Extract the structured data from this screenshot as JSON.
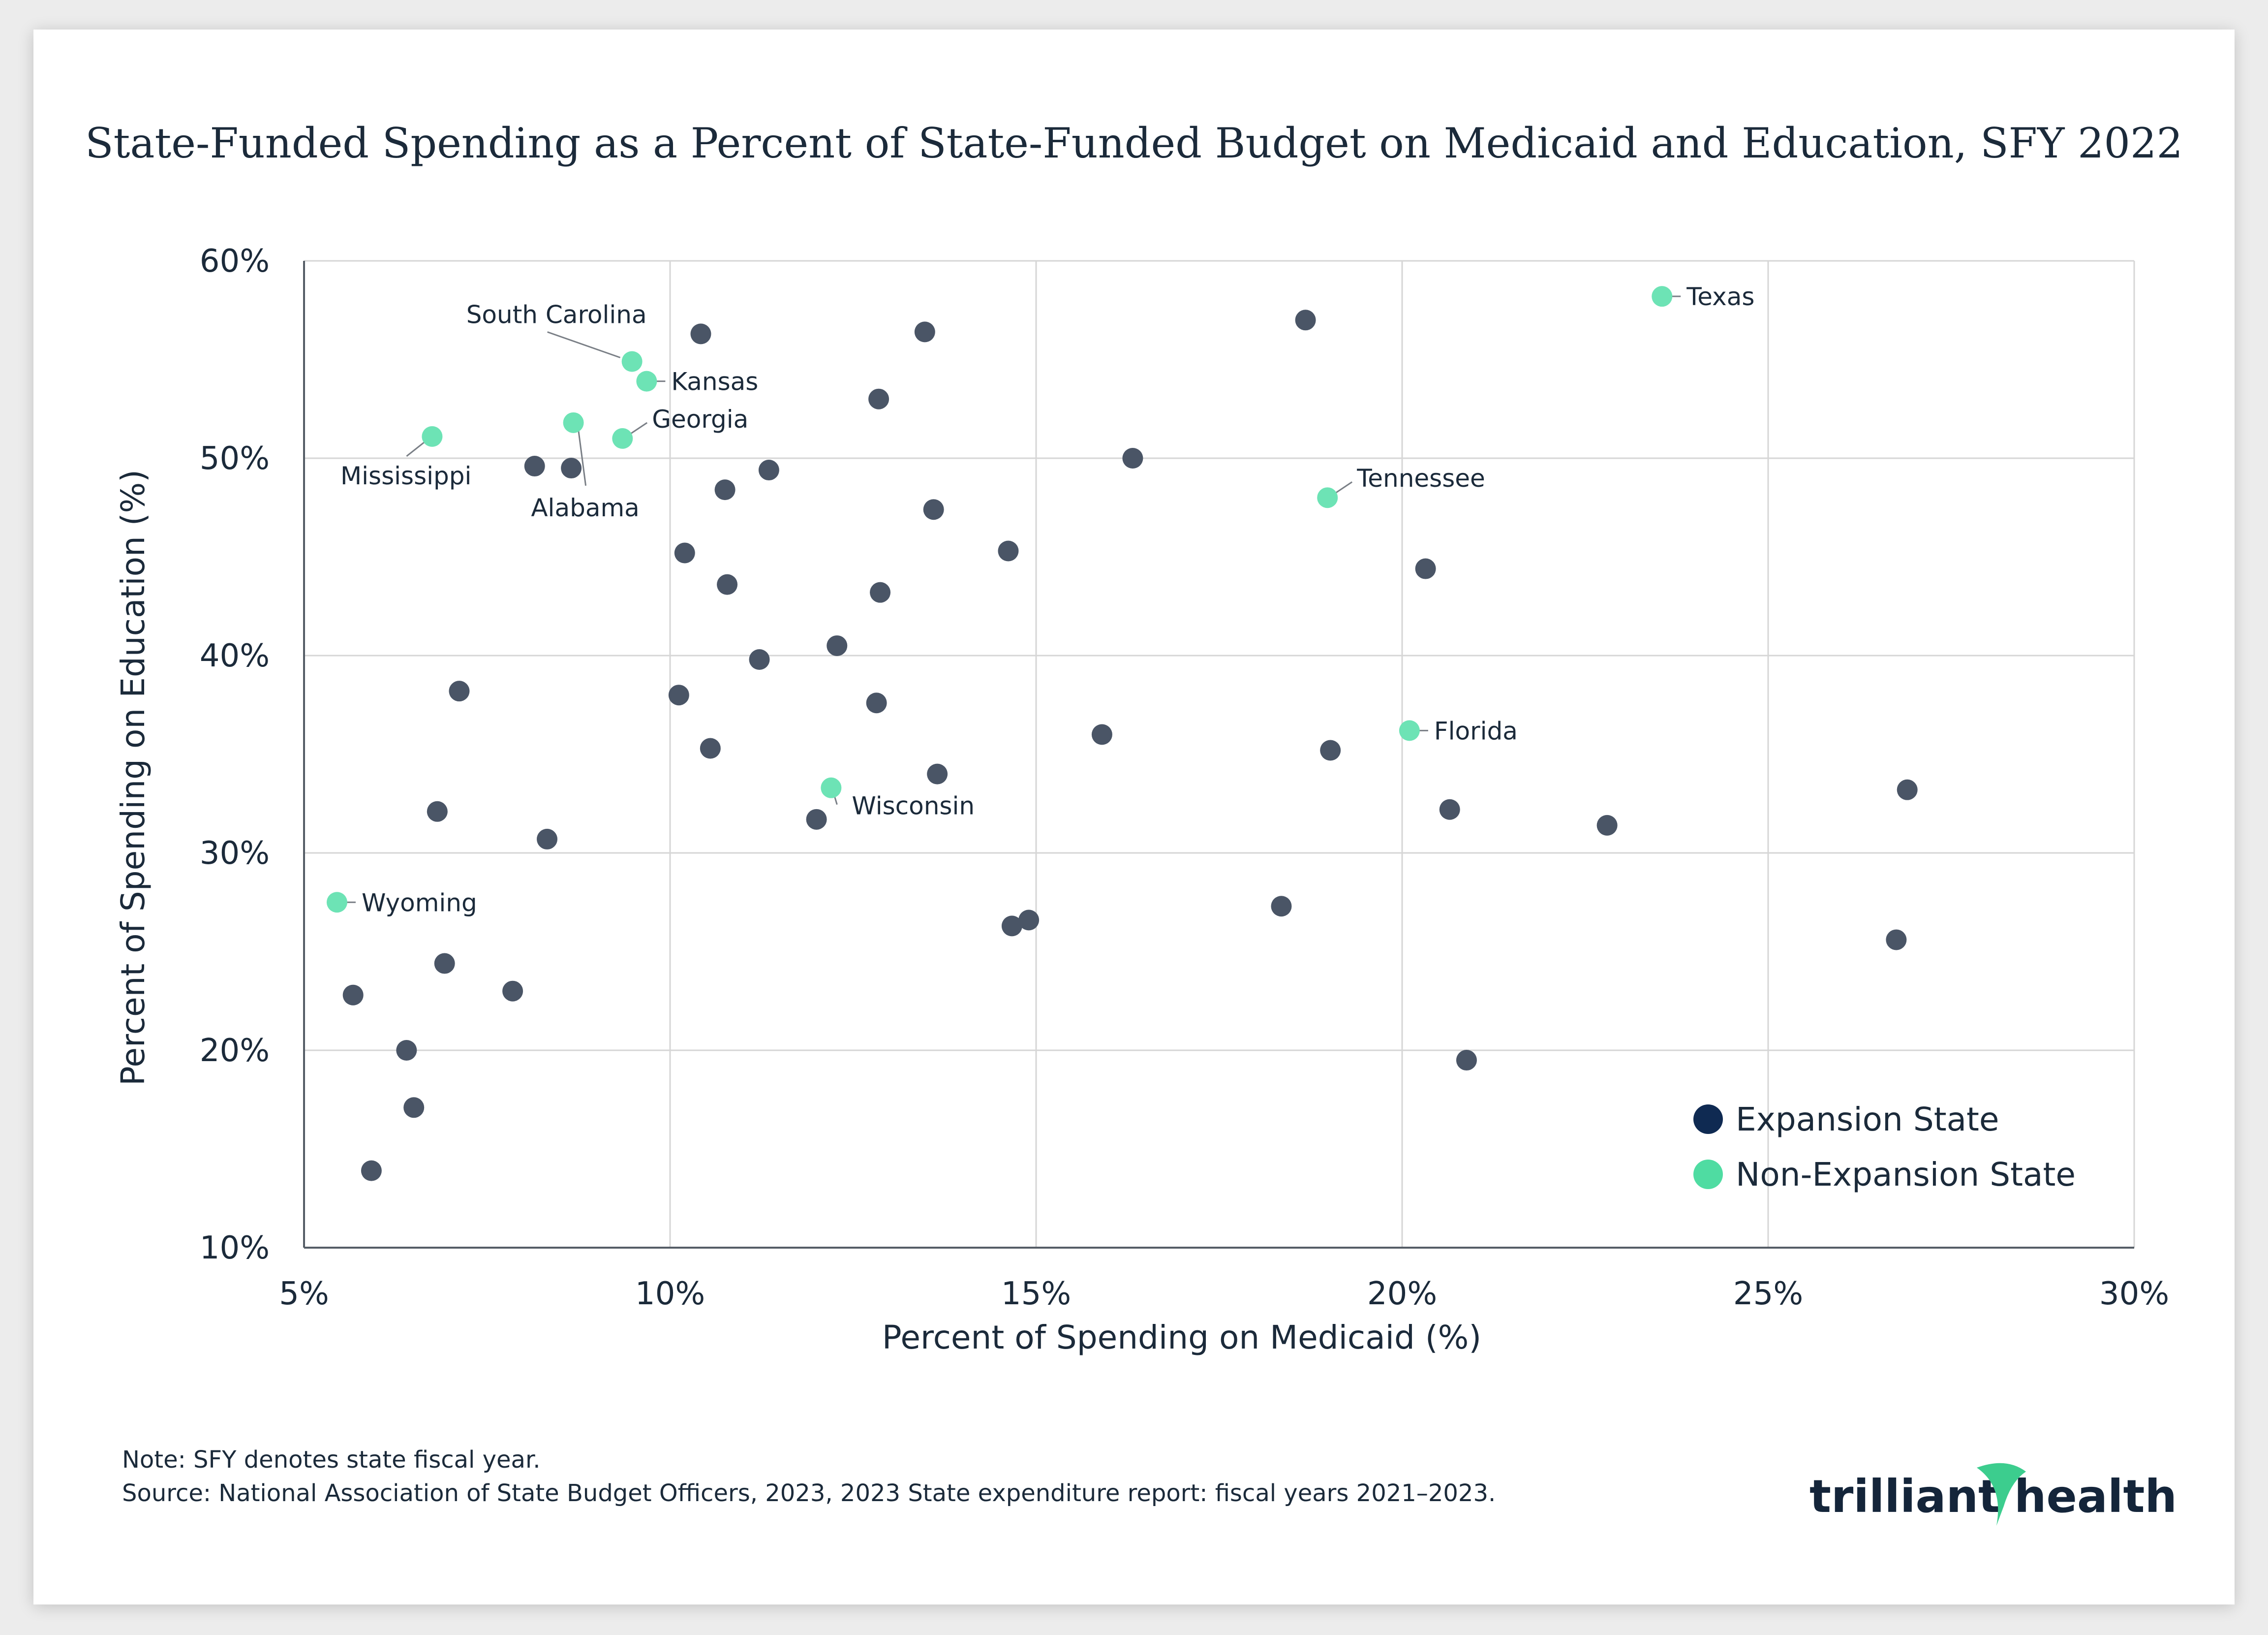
{
  "colors": {
    "expansion": "#4a5566",
    "non_expansion": "#6de3b5",
    "legend_expansion": "#0f2a52",
    "legend_non_expansion": "#4fdca2",
    "logo_accent": "#3ccd8e"
  },
  "notes": {
    "note": "Note: SFY denotes state fiscal year.",
    "source": "Source: National Association of State Budget Officers, 2023, 2023 State expenditure report: fiscal years 2021–2023."
  },
  "logo": {
    "left": "trilliant",
    "right": "health"
  },
  "chart_data": {
    "type": "scatter",
    "title": "State-Funded Spending as a Percent of State-Funded Budget on Medicaid and Education, SFY 2022",
    "xlabel": "Percent of Spending on Medicaid (%)",
    "ylabel": "Percent of Spending on Education (%)",
    "xlim": [
      5,
      30
    ],
    "ylim": [
      10,
      60
    ],
    "xticks": [
      5,
      10,
      15,
      20,
      25,
      30
    ],
    "yticks": [
      10,
      20,
      30,
      40,
      50,
      60
    ],
    "xtick_labels": [
      "5%",
      "10%",
      "15%",
      "20%",
      "25%",
      "30%"
    ],
    "ytick_labels": [
      "10%",
      "20%",
      "30%",
      "40%",
      "50%",
      "60%"
    ],
    "grid": true,
    "legend": {
      "position": "bottom-right",
      "entries": [
        {
          "name": "Expansion State",
          "series": "expansion"
        },
        {
          "name": "Non-Expansion State",
          "series": "non_expansion"
        }
      ]
    },
    "series": [
      {
        "name": "Non-Expansion State",
        "key": "non_expansion",
        "points": [
          {
            "label": "Texas",
            "x": 23.55,
            "y": 58.2,
            "label_side": "right"
          },
          {
            "label": "South Carolina",
            "x": 9.48,
            "y": 54.9,
            "label_side": "upper-left"
          },
          {
            "label": "Kansas",
            "x": 9.68,
            "y": 53.9,
            "label_side": "right"
          },
          {
            "label": "Georgia",
            "x": 9.35,
            "y": 51.0,
            "label_side": "upper-right"
          },
          {
            "label": "Alabama",
            "x": 8.68,
            "y": 51.8,
            "label_side": "below"
          },
          {
            "label": "Mississippi",
            "x": 6.75,
            "y": 51.1,
            "label_side": "lower-left"
          },
          {
            "label": "Tennessee",
            "x": 18.98,
            "y": 48.0,
            "label_side": "upper-right"
          },
          {
            "label": "Florida",
            "x": 20.1,
            "y": 36.2,
            "label_side": "right"
          },
          {
            "label": "Wisconsin",
            "x": 12.2,
            "y": 33.3,
            "label_side": "lower-right"
          },
          {
            "label": "Wyoming",
            "x": 5.45,
            "y": 27.5,
            "label_side": "right"
          }
        ]
      },
      {
        "name": "Expansion State",
        "key": "expansion",
        "points": [
          {
            "x": 10.42,
            "y": 56.3
          },
          {
            "x": 13.48,
            "y": 56.4
          },
          {
            "x": 18.68,
            "y": 57.0
          },
          {
            "x": 12.85,
            "y": 53.0
          },
          {
            "x": 8.15,
            "y": 49.6
          },
          {
            "x": 8.65,
            "y": 49.5
          },
          {
            "x": 11.35,
            "y": 49.4
          },
          {
            "x": 10.75,
            "y": 48.4
          },
          {
            "x": 13.6,
            "y": 47.4
          },
          {
            "x": 16.32,
            "y": 50.0
          },
          {
            "x": 10.2,
            "y": 45.2
          },
          {
            "x": 14.62,
            "y": 45.3
          },
          {
            "x": 20.32,
            "y": 44.4
          },
          {
            "x": 10.78,
            "y": 43.6
          },
          {
            "x": 12.87,
            "y": 43.2
          },
          {
            "x": 12.28,
            "y": 40.5
          },
          {
            "x": 11.22,
            "y": 39.8
          },
          {
            "x": 10.12,
            "y": 38.0
          },
          {
            "x": 7.12,
            "y": 38.2
          },
          {
            "x": 12.82,
            "y": 37.6
          },
          {
            "x": 15.9,
            "y": 36.0
          },
          {
            "x": 10.55,
            "y": 35.3
          },
          {
            "x": 19.02,
            "y": 35.2
          },
          {
            "x": 13.65,
            "y": 34.0
          },
          {
            "x": 26.9,
            "y": 33.2
          },
          {
            "x": 6.82,
            "y": 32.1
          },
          {
            "x": 20.65,
            "y": 32.2
          },
          {
            "x": 12.0,
            "y": 31.7
          },
          {
            "x": 22.8,
            "y": 31.4
          },
          {
            "x": 8.32,
            "y": 30.7
          },
          {
            "x": 18.35,
            "y": 27.3
          },
          {
            "x": 14.67,
            "y": 26.3
          },
          {
            "x": 14.9,
            "y": 26.6
          },
          {
            "x": 26.75,
            "y": 25.6
          },
          {
            "x": 6.92,
            "y": 24.4
          },
          {
            "x": 5.67,
            "y": 22.8
          },
          {
            "x": 7.85,
            "y": 23.0
          },
          {
            "x": 6.4,
            "y": 20.0
          },
          {
            "x": 20.88,
            "y": 19.5
          },
          {
            "x": 6.5,
            "y": 17.1
          },
          {
            "x": 5.92,
            "y": 13.9
          }
        ]
      }
    ]
  }
}
